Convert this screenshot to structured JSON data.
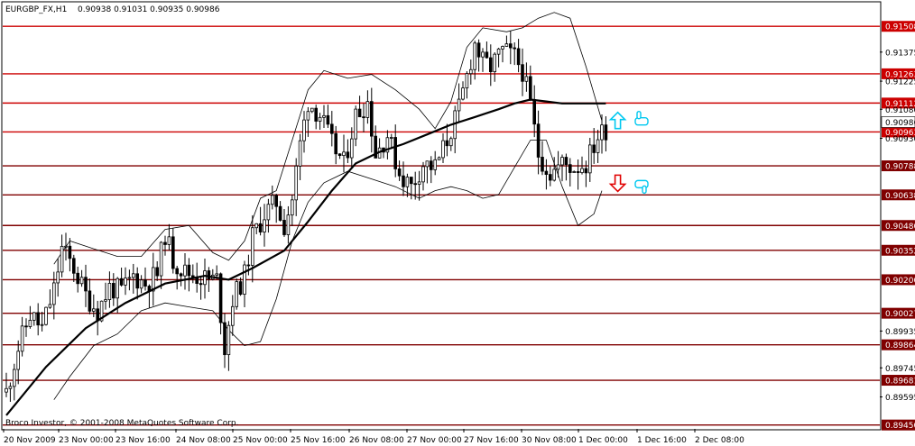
{
  "header": {
    "symbol": "EURGBP_FX,H1",
    "ohlc": "0.90938 0.91031 0.90935 0.90986"
  },
  "copyright": "Broco Investor, © 2001-2008 MetaQuotes Software Corp.",
  "colors": {
    "background": "#ffffff",
    "candle": "#000000",
    "level_line": "#cc0000",
    "dark_level_line": "#800000",
    "bollinger": "#000000",
    "moving_average": "#000000",
    "arrow_up": "#00c8f0",
    "arrow_down": "#e00000",
    "hand_icon": "#00c8f0"
  },
  "icons": {
    "buy_arrow": "up-arrow-icon",
    "sell_arrow": "down-arrow-icon",
    "buy_hand": "hand-up-icon",
    "sell_hand": "hand-down-icon"
  },
  "chart_data": {
    "type": "candlestick",
    "ylim": [
      0.8943,
      0.9163
    ],
    "x_ticks": [
      "20 Nov 2009",
      "23 Nov 00:00",
      "23 Nov 16:00",
      "24 Nov 08:00",
      "25 Nov 00:00",
      "25 Nov 16:00",
      "26 Nov 08:00",
      "27 Nov 00:00",
      "27 Nov 16:00",
      "30 Nov 08:00",
      "1 Dec 00:00",
      "1 Dec 16:00",
      "2 Dec 08:00"
    ],
    "y_ticks": [
      "0.91375",
      "0.91225",
      "0.91080",
      "0.90930",
      "0.89935",
      "0.89745",
      "0.89595"
    ],
    "levels": [
      {
        "value": 0.91508,
        "label": "0.91508",
        "style": "red"
      },
      {
        "value": 0.91263,
        "label": "0.91263",
        "style": "red"
      },
      {
        "value": 0.91112,
        "label": "0.91112",
        "style": "red"
      },
      {
        "value": 0.90963,
        "label": "0.90963",
        "style": "red"
      },
      {
        "value": 0.90788,
        "label": "0.90788",
        "style": "dark"
      },
      {
        "value": 0.90638,
        "label": "0.90638",
        "style": "dark"
      },
      {
        "value": 0.9048,
        "label": "0.90480",
        "style": "dark"
      },
      {
        "value": 0.90352,
        "label": "0.90352",
        "style": "dark"
      },
      {
        "value": 0.902,
        "label": "0.90200",
        "style": "dark"
      },
      {
        "value": 0.90027,
        "label": "0.90027",
        "style": "dark"
      },
      {
        "value": 0.89864,
        "label": "0.89864",
        "style": "dark"
      },
      {
        "value": 0.89681,
        "label": "0.89681",
        "style": "dark"
      },
      {
        "value": 0.8945,
        "label": "0.89450",
        "style": "dark"
      }
    ],
    "current_price": {
      "value": 0.90986,
      "label": "0.90986"
    },
    "close_path": [
      [
        0,
        0.8962
      ],
      [
        3,
        0.8985
      ],
      [
        6,
        0.9002
      ],
      [
        9,
        0.8995
      ],
      [
        12,
        0.9015
      ],
      [
        14,
        0.9036
      ],
      [
        17,
        0.9026
      ],
      [
        20,
        0.9012
      ],
      [
        23,
        0.9004
      ],
      [
        26,
        0.9016
      ],
      [
        29,
        0.9014
      ],
      [
        32,
        0.9022
      ],
      [
        35,
        0.9018
      ],
      [
        38,
        0.9023
      ],
      [
        40,
        0.9044
      ],
      [
        42,
        0.903
      ],
      [
        45,
        0.9024
      ],
      [
        48,
        0.9022
      ],
      [
        51,
        0.902
      ],
      [
        53,
        0.902
      ],
      [
        55,
        0.8985
      ],
      [
        57,
        0.901
      ],
      [
        60,
        0.9022
      ],
      [
        62,
        0.9042
      ],
      [
        65,
        0.9054
      ],
      [
        68,
        0.906
      ],
      [
        70,
        0.9048
      ],
      [
        72,
        0.9062
      ],
      [
        74,
        0.909
      ],
      [
        76,
        0.9112
      ],
      [
        79,
        0.9105
      ],
      [
        82,
        0.909
      ],
      [
        85,
        0.908
      ],
      [
        88,
        0.9105
      ],
      [
        91,
        0.9112
      ],
      [
        93,
        0.9085
      ],
      [
        96,
        0.9095
      ],
      [
        99,
        0.9075
      ],
      [
        102,
        0.9068
      ],
      [
        105,
        0.908
      ],
      [
        108,
        0.9078
      ],
      [
        111,
        0.9092
      ],
      [
        114,
        0.9108
      ],
      [
        116,
        0.9125
      ],
      [
        118,
        0.9142
      ],
      [
        120,
        0.9132
      ],
      [
        122,
        0.913
      ],
      [
        125,
        0.9138
      ],
      [
        128,
        0.9135
      ],
      [
        130,
        0.9128
      ],
      [
        132,
        0.911
      ],
      [
        134,
        0.9085
      ],
      [
        137,
        0.9075
      ],
      [
        140,
        0.908
      ],
      [
        143,
        0.9078
      ],
      [
        146,
        0.908
      ],
      [
        149,
        0.9094
      ],
      [
        151,
        0.9098
      ]
    ],
    "moving_average": [
      [
        0,
        0.895
      ],
      [
        10,
        0.8975
      ],
      [
        20,
        0.8995
      ],
      [
        30,
        0.9008
      ],
      [
        40,
        0.9018
      ],
      [
        50,
        0.9022
      ],
      [
        56,
        0.902
      ],
      [
        62,
        0.9026
      ],
      [
        70,
        0.9035
      ],
      [
        76,
        0.905
      ],
      [
        82,
        0.9066
      ],
      [
        88,
        0.908
      ],
      [
        94,
        0.9086
      ],
      [
        100,
        0.909
      ],
      [
        106,
        0.9095
      ],
      [
        112,
        0.91
      ],
      [
        118,
        0.9104
      ],
      [
        124,
        0.9108
      ],
      [
        128,
        0.9111
      ],
      [
        132,
        0.9113
      ],
      [
        136,
        0.9112
      ],
      [
        140,
        0.9111
      ],
      [
        144,
        0.9111
      ],
      [
        148,
        0.9111
      ],
      [
        151,
        0.9111
      ]
    ],
    "bollinger_upper": [
      [
        12,
        0.9028
      ],
      [
        16,
        0.904
      ],
      [
        22,
        0.9036
      ],
      [
        28,
        0.9032
      ],
      [
        34,
        0.9032
      ],
      [
        40,
        0.9046
      ],
      [
        46,
        0.9048
      ],
      [
        52,
        0.9034
      ],
      [
        56,
        0.903
      ],
      [
        60,
        0.904
      ],
      [
        64,
        0.9062
      ],
      [
        68,
        0.9066
      ],
      [
        72,
        0.9092
      ],
      [
        76,
        0.9118
      ],
      [
        80,
        0.9128
      ],
      [
        86,
        0.9124
      ],
      [
        92,
        0.9126
      ],
      [
        98,
        0.9118
      ],
      [
        104,
        0.9108
      ],
      [
        108,
        0.9098
      ],
      [
        112,
        0.9112
      ],
      [
        116,
        0.914
      ],
      [
        120,
        0.915
      ],
      [
        126,
        0.9148
      ],
      [
        130,
        0.915
      ],
      [
        134,
        0.9155
      ],
      [
        138,
        0.9158
      ],
      [
        142,
        0.9155
      ],
      [
        146,
        0.913
      ],
      [
        150,
        0.9102
      ]
    ],
    "bollinger_lower": [
      [
        12,
        0.8958
      ],
      [
        16,
        0.897
      ],
      [
        22,
        0.8986
      ],
      [
        28,
        0.8992
      ],
      [
        34,
        0.9004
      ],
      [
        40,
        0.9008
      ],
      [
        46,
        0.9006
      ],
      [
        52,
        0.9004
      ],
      [
        56,
        0.8994
      ],
      [
        60,
        0.8986
      ],
      [
        64,
        0.8988
      ],
      [
        68,
        0.901
      ],
      [
        72,
        0.904
      ],
      [
        76,
        0.906
      ],
      [
        80,
        0.907
      ],
      [
        86,
        0.9076
      ],
      [
        92,
        0.9072
      ],
      [
        98,
        0.9068
      ],
      [
        104,
        0.9062
      ],
      [
        108,
        0.9066
      ],
      [
        112,
        0.9068
      ],
      [
        116,
        0.9066
      ],
      [
        120,
        0.9062
      ],
      [
        124,
        0.9064
      ],
      [
        128,
        0.9078
      ],
      [
        132,
        0.9092
      ],
      [
        136,
        0.9092
      ],
      [
        140,
        0.9068
      ],
      [
        144,
        0.9048
      ],
      [
        148,
        0.9054
      ],
      [
        150,
        0.9066
      ]
    ],
    "markers": [
      {
        "type": "up-arrow",
        "bar": 154,
        "value": 0.91022
      },
      {
        "type": "down-arrow",
        "bar": 154,
        "value": 0.90698
      },
      {
        "type": "hand-up",
        "bar": 160,
        "value": 0.91022
      },
      {
        "type": "hand-down",
        "bar": 160,
        "value": 0.90698
      }
    ]
  }
}
